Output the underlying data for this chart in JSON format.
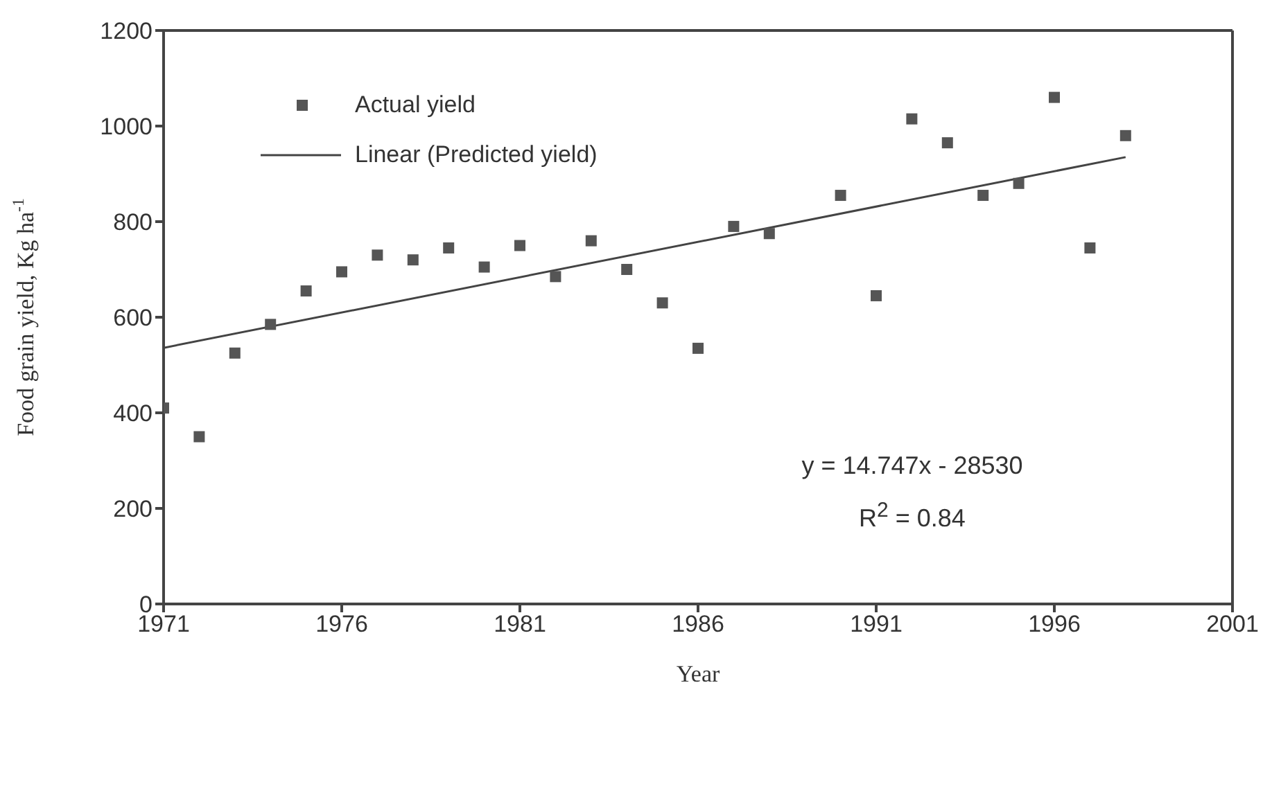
{
  "chart_data": {
    "type": "scatter",
    "xlabel": "Year",
    "ylabel": "Food grain yield, Kg  ha$^{-1}$",
    "x": [
      1971,
      1972,
      1973,
      1974,
      1975,
      1976,
      1977,
      1978,
      1979,
      1980,
      1981,
      1982,
      1983,
      1984,
      1985,
      1986,
      1987,
      1988,
      1990,
      1991,
      1992,
      1993,
      1994,
      1995,
      1996,
      1997,
      1998
    ],
    "series": [
      {
        "name": "Actual yield",
        "color": "#555555",
        "marker": "square",
        "values": [
          410,
          350,
          525,
          585,
          655,
          695,
          730,
          720,
          745,
          705,
          750,
          685,
          760,
          700,
          630,
          535,
          790,
          775,
          855,
          645,
          1015,
          965,
          855,
          880,
          1060,
          745,
          980
        ]
      },
      {
        "name": "Linear (Predicted yield)",
        "type": "line",
        "color": "#444444",
        "line_style": "solid",
        "marker": "none",
        "x": [
          1971,
          1998
        ],
        "values": [
          536,
          935
        ]
      }
    ],
    "xlim": [
      1971,
      2001
    ],
    "xticks": [
      1971,
      1976,
      1981,
      1986,
      1991,
      1996,
      2001
    ],
    "ylim": [
      0,
      1200
    ],
    "yticks": [
      0,
      200,
      400,
      600,
      800,
      1000,
      1200
    ],
    "grid": false,
    "legend": "top left",
    "annotations": [
      "y = 14.747x - 28530",
      "R$^{2}$ = 0.84"
    ]
  }
}
